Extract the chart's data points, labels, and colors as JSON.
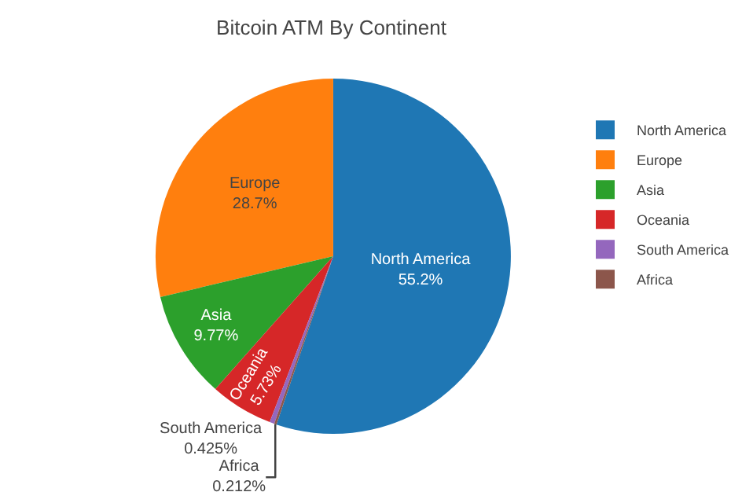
{
  "chart_data": {
    "type": "pie",
    "title": "Bitcoin ATM By Continent",
    "categories": [
      "North America",
      "Europe",
      "Asia",
      "Oceania",
      "South America",
      "Africa"
    ],
    "values": [
      55.2,
      28.7,
      9.77,
      5.73,
      0.425,
      0.212
    ],
    "value_labels": [
      "55.2%",
      "28.7%",
      "9.77%",
      "5.73%",
      "0.425%",
      "0.212%"
    ],
    "colors": [
      "#1f77b4",
      "#ff7f0e",
      "#2ca02c",
      "#d62728",
      "#9467bd",
      "#8c564b"
    ],
    "legend": "top right"
  }
}
